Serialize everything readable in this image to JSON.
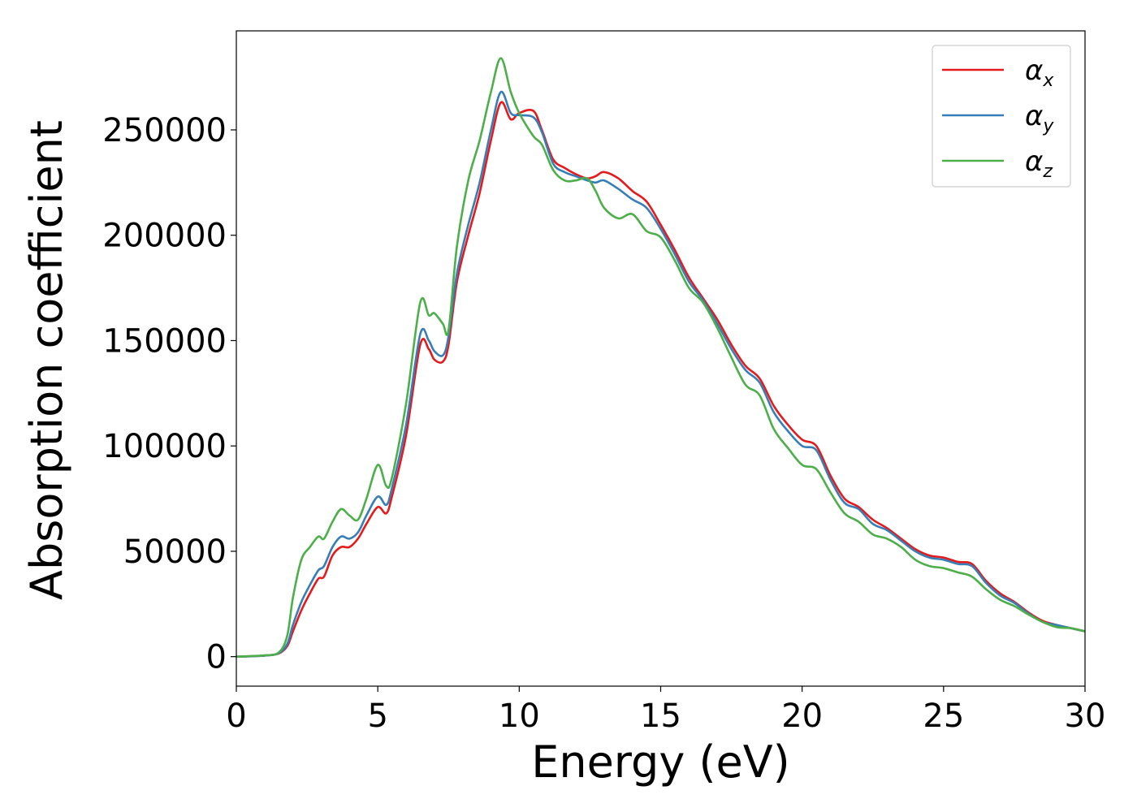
{
  "chart_data": {
    "type": "line",
    "title": "",
    "xlabel": "Energy (eV)",
    "ylabel": "Absorption coefficient",
    "xlim": [
      0,
      30
    ],
    "ylim": [
      -14000,
      297000
    ],
    "xticks": [
      0,
      5,
      10,
      15,
      20,
      25,
      30
    ],
    "xtick_labels": [
      "0",
      "5",
      "10",
      "15",
      "20",
      "25",
      "30"
    ],
    "yticks": [
      0,
      50000,
      100000,
      150000,
      200000,
      250000
    ],
    "ytick_labels": [
      "0",
      "50000",
      "100000",
      "150000",
      "200000",
      "250000"
    ],
    "grid": false,
    "legend_position": "top-right",
    "series": [
      {
        "name": "αx",
        "symbol": "α",
        "subscript": "x",
        "color": "#e41a1c",
        "x": [
          0,
          1,
          1.5,
          1.8,
          2,
          2.3,
          2.6,
          2.9,
          3.1,
          3.4,
          3.7,
          4.0,
          4.3,
          4.6,
          5.0,
          5.3,
          5.5,
          6.0,
          6.5,
          6.8,
          7.0,
          7.3,
          7.5,
          7.8,
          8.2,
          8.6,
          9.0,
          9.35,
          9.7,
          10.0,
          10.5,
          10.8,
          11.2,
          11.6,
          12.0,
          12.4,
          12.7,
          13.0,
          13.5,
          14.0,
          14.5,
          15.0,
          15.5,
          16.0,
          16.5,
          17.0,
          17.5,
          18.0,
          18.5,
          19.0,
          19.5,
          20.0,
          20.5,
          21.0,
          21.5,
          22.0,
          22.5,
          23.0,
          23.5,
          24.0,
          24.5,
          25.0,
          25.5,
          26.0,
          26.5,
          27.0,
          27.5,
          28.0,
          28.5,
          29.0,
          29.5,
          30.0
        ],
        "y": [
          0,
          500,
          1500,
          5000,
          12000,
          22000,
          30000,
          37000,
          38000,
          48000,
          52000,
          52000,
          56000,
          63000,
          71000,
          68000,
          76000,
          105000,
          148000,
          146000,
          141000,
          140000,
          148000,
          178000,
          200000,
          220000,
          245000,
          263000,
          255000,
          258000,
          259000,
          250000,
          236000,
          232000,
          229000,
          227000,
          228000,
          230000,
          227000,
          221000,
          216000,
          205000,
          193000,
          180000,
          170000,
          160000,
          148000,
          138000,
          132000,
          119000,
          110000,
          103000,
          100000,
          86000,
          75000,
          71000,
          65000,
          61000,
          56000,
          51000,
          48000,
          47000,
          45000,
          44000,
          36000,
          30000,
          26000,
          21000,
          17000,
          15000,
          13500,
          12000
        ]
      },
      {
        "name": "αy",
        "symbol": "α",
        "subscript": "y",
        "color": "#377eb8",
        "x": [
          0,
          1,
          1.5,
          1.8,
          2,
          2.3,
          2.6,
          2.9,
          3.1,
          3.4,
          3.7,
          4.0,
          4.3,
          4.6,
          5.0,
          5.3,
          5.5,
          6.0,
          6.5,
          6.8,
          7.0,
          7.3,
          7.5,
          7.8,
          8.2,
          8.6,
          9.0,
          9.35,
          9.7,
          10.0,
          10.5,
          10.8,
          11.2,
          11.6,
          12.0,
          12.4,
          12.7,
          13.0,
          13.5,
          14.0,
          14.5,
          15.0,
          15.5,
          16.0,
          16.5,
          17.0,
          17.5,
          18.0,
          18.5,
          19.0,
          19.5,
          20.0,
          20.5,
          21.0,
          21.5,
          22.0,
          22.5,
          23.0,
          23.5,
          24.0,
          24.5,
          25.0,
          25.5,
          26.0,
          26.5,
          27.0,
          27.5,
          28.0,
          28.5,
          29.0,
          29.5,
          30.0
        ],
        "y": [
          0,
          500,
          1600,
          6000,
          15000,
          26000,
          34000,
          41000,
          43000,
          52000,
          57000,
          56000,
          59000,
          67000,
          76000,
          72000,
          80000,
          110000,
          153000,
          150000,
          145000,
          143000,
          152000,
          182000,
          205000,
          225000,
          250000,
          268000,
          258000,
          257000,
          256000,
          249000,
          234000,
          230000,
          228000,
          226000,
          225000,
          226000,
          222000,
          217000,
          213000,
          203000,
          191000,
          178000,
          169000,
          158000,
          146000,
          136000,
          130000,
          116000,
          107000,
          100000,
          98000,
          84000,
          73000,
          70000,
          63000,
          60000,
          55000,
          50000,
          47000,
          46000,
          44000,
          43000,
          35000,
          29000,
          25500,
          20500,
          16500,
          15000,
          13500,
          12000
        ]
      },
      {
        "name": "αz",
        "symbol": "α",
        "subscript": "z",
        "color": "#4daf4a",
        "x": [
          0,
          1,
          1.5,
          1.8,
          2,
          2.3,
          2.6,
          2.9,
          3.1,
          3.4,
          3.7,
          4.0,
          4.3,
          4.6,
          5.0,
          5.3,
          5.5,
          6.0,
          6.5,
          6.8,
          7.0,
          7.3,
          7.5,
          7.8,
          8.2,
          8.6,
          9.0,
          9.35,
          9.7,
          10.0,
          10.5,
          10.8,
          11.2,
          11.6,
          12.0,
          12.4,
          12.7,
          13.0,
          13.5,
          14.0,
          14.5,
          15.0,
          15.5,
          16.0,
          16.5,
          17.0,
          17.5,
          18.0,
          18.5,
          19.0,
          19.5,
          20.0,
          20.5,
          21.0,
          21.5,
          22.0,
          22.5,
          23.0,
          23.5,
          24.0,
          24.5,
          25.0,
          25.5,
          26.0,
          26.5,
          27.0,
          27.5,
          28.0,
          28.5,
          29.0,
          29.5,
          30.0
        ],
        "y": [
          0,
          600,
          2000,
          10000,
          28000,
          46000,
          52000,
          57000,
          56000,
          64000,
          70000,
          67000,
          65000,
          75000,
          91000,
          81000,
          85000,
          120000,
          168000,
          162000,
          163000,
          158000,
          155000,
          195000,
          226000,
          245000,
          268000,
          284000,
          268000,
          258000,
          247000,
          243000,
          231000,
          226000,
          226000,
          227000,
          221000,
          213000,
          208000,
          210000,
          202000,
          199000,
          188000,
          175000,
          168000,
          156000,
          142000,
          129000,
          124000,
          108000,
          99000,
          91000,
          89000,
          78000,
          68000,
          64000,
          58000,
          56000,
          52000,
          46000,
          43000,
          42000,
          40000,
          38000,
          32000,
          27000,
          24000,
          20000,
          16500,
          14000,
          13500,
          12000
        ]
      }
    ]
  }
}
